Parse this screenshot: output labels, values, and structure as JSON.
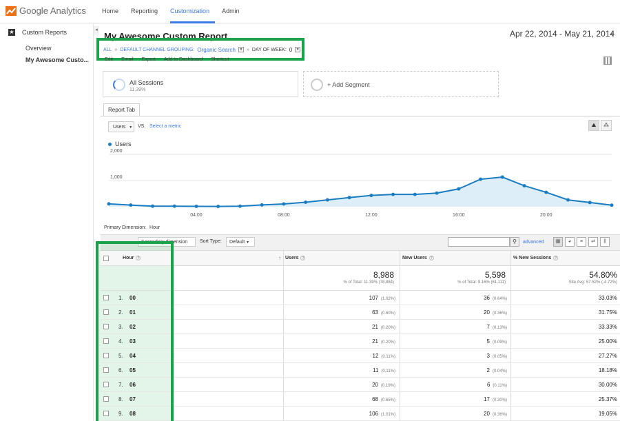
{
  "app": {
    "logo_text": "Google Analytics",
    "nav": [
      "Home",
      "Reporting",
      "Customization",
      "Admin"
    ],
    "active_nav": "Customization"
  },
  "sidebar": {
    "header": "Custom Reports",
    "items": [
      "Overview",
      "My Awesome Custo..."
    ]
  },
  "report": {
    "title": "My Awesome Custom Report",
    "date_range": "Apr 22, 2014 - May 21, 2014",
    "breadcrumb": {
      "all": "ALL",
      "dim1": "DEFAULT CHANNEL GROUPING:",
      "dim1_value": "Organic Search",
      "dim2": "DAY OF WEEK:",
      "dim2_value": "0"
    },
    "actions": [
      "Edit",
      "Email",
      "Export",
      "Add to Dashboard",
      "Shortcut"
    ]
  },
  "segments": {
    "active": {
      "title": "All Sessions",
      "subtitle": "11.39%"
    },
    "add_label": "+ Add Segment"
  },
  "tab": {
    "label": "Report Tab"
  },
  "chart_controls": {
    "metric": "Users",
    "vs": "VS.",
    "select_metric": "Select a metric"
  },
  "chart_data": {
    "type": "area",
    "series": [
      {
        "name": "Users",
        "color": "#1a7dc1",
        "values": [
          107,
          63,
          21,
          21,
          12,
          11,
          20,
          68,
          106,
          170,
          260,
          350,
          430,
          470,
          470,
          520,
          680,
          1050,
          1130,
          800,
          550,
          260,
          160,
          60
        ]
      }
    ],
    "x": [
      0,
      1,
      2,
      3,
      4,
      5,
      6,
      7,
      8,
      9,
      10,
      11,
      12,
      13,
      14,
      15,
      16,
      17,
      18,
      19,
      20,
      21,
      22,
      23
    ],
    "x_tick_labels": [
      "04:00",
      "08:00",
      "12:00",
      "16:00",
      "20:00"
    ],
    "x_tick_positions": [
      4,
      8,
      12,
      16,
      20
    ],
    "y_tick_labels": [
      "1,000",
      "2,000"
    ],
    "y_ticks": [
      1000,
      2000
    ],
    "ylim": [
      0,
      2000
    ],
    "grid": true
  },
  "table_controls": {
    "primary_dimension_label": "Primary Dimension:",
    "primary_dimension": "Hour",
    "secondary_dimension": "Secondary dimension",
    "sort_label": "Sort Type:",
    "sort_value": "Default",
    "advanced": "advanced"
  },
  "table": {
    "columns": [
      "Hour",
      "Users",
      "New Users",
      "% New Sessions"
    ],
    "totals": {
      "users": "8,988",
      "users_sub": "% of Total: 11.39% (78,884)",
      "new_users": "5,598",
      "new_users_sub": "% of Total: 9.16% (61,111)",
      "pct_new": "54.80%",
      "pct_new_sub": "Site Avg: 57.52% (-4.72%)"
    },
    "rows": [
      {
        "n": "1.",
        "hour": "00",
        "users": "107",
        "users_pct": "(1.02%)",
        "new": "36",
        "new_pct": "(0.64%)",
        "pnew": "33.03%"
      },
      {
        "n": "2.",
        "hour": "01",
        "users": "63",
        "users_pct": "(0.60%)",
        "new": "20",
        "new_pct": "(0.36%)",
        "pnew": "31.75%"
      },
      {
        "n": "3.",
        "hour": "02",
        "users": "21",
        "users_pct": "(0.20%)",
        "new": "7",
        "new_pct": "(0.13%)",
        "pnew": "33.33%"
      },
      {
        "n": "4.",
        "hour": "03",
        "users": "21",
        "users_pct": "(0.20%)",
        "new": "5",
        "new_pct": "(0.09%)",
        "pnew": "25.00%"
      },
      {
        "n": "5.",
        "hour": "04",
        "users": "12",
        "users_pct": "(0.11%)",
        "new": "3",
        "new_pct": "(0.05%)",
        "pnew": "27.27%"
      },
      {
        "n": "6.",
        "hour": "05",
        "users": "11",
        "users_pct": "(0.11%)",
        "new": "2",
        "new_pct": "(0.04%)",
        "pnew": "18.18%"
      },
      {
        "n": "7.",
        "hour": "06",
        "users": "20",
        "users_pct": "(0.19%)",
        "new": "6",
        "new_pct": "(0.11%)",
        "pnew": "30.00%"
      },
      {
        "n": "8.",
        "hour": "07",
        "users": "68",
        "users_pct": "(0.65%)",
        "new": "17",
        "new_pct": "(0.30%)",
        "pnew": "25.37%"
      },
      {
        "n": "9.",
        "hour": "08",
        "users": "106",
        "users_pct": "(1.01%)",
        "new": "20",
        "new_pct": "(0.36%)",
        "pnew": "19.05%"
      }
    ]
  }
}
